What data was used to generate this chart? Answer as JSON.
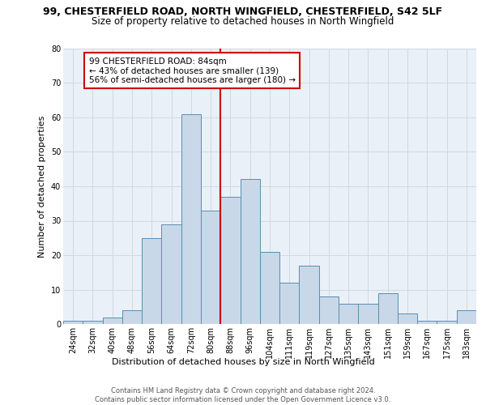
{
  "title": "99, CHESTERFIELD ROAD, NORTH WINGFIELD, CHESTERFIELD, S42 5LF",
  "subtitle": "Size of property relative to detached houses in North Wingfield",
  "xlabel": "Distribution of detached houses by size in North Wingfield",
  "ylabel": "Number of detached properties",
  "footnote": "Contains HM Land Registry data © Crown copyright and database right 2024.\nContains public sector information licensed under the Open Government Licence v3.0.",
  "bar_labels": [
    "24sqm",
    "32sqm",
    "40sqm",
    "48sqm",
    "56sqm",
    "64sqm",
    "72sqm",
    "80sqm",
    "88sqm",
    "96sqm",
    "104sqm",
    "111sqm",
    "119sqm",
    "127sqm",
    "135sqm",
    "143sqm",
    "151sqm",
    "159sqm",
    "167sqm",
    "175sqm",
    "183sqm"
  ],
  "bar_values": [
    1,
    1,
    2,
    4,
    25,
    29,
    61,
    33,
    37,
    42,
    21,
    12,
    17,
    8,
    6,
    6,
    9,
    3,
    1,
    1,
    4
  ],
  "bar_color": "#c8d8e8",
  "bar_edge_color": "#5b8db0",
  "vline_x": 7.5,
  "vline_color": "#cc0000",
  "annotation_text": "99 CHESTERFIELD ROAD: 84sqm\n← 43% of detached houses are smaller (139)\n56% of semi-detached houses are larger (180) →",
  "annotation_box_color": "#ffffff",
  "annotation_box_edge": "#cc0000",
  "ylim": [
    0,
    80
  ],
  "yticks": [
    0,
    10,
    20,
    30,
    40,
    50,
    60,
    70,
    80
  ],
  "grid_color": "#d0d8e0",
  "bg_color": "#eaf0f8",
  "title_fontsize": 9,
  "subtitle_fontsize": 8.5,
  "axis_label_fontsize": 8,
  "tick_fontsize": 7,
  "annotation_fontsize": 7.5,
  "footnote_fontsize": 6,
  "ylabel_fontsize": 8
}
